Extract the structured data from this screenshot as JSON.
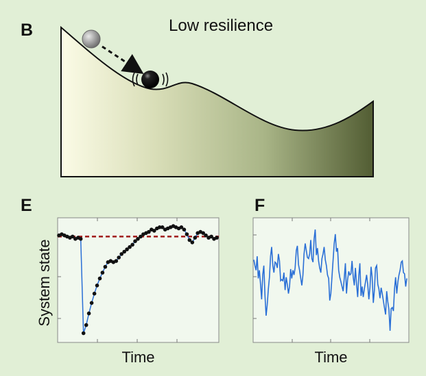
{
  "panel_b": {
    "letter": "B",
    "title": "Low resilience"
  },
  "panel_e": {
    "letter": "E",
    "ylabel": "System state",
    "xlabel": "Time"
  },
  "panel_f": {
    "letter": "F",
    "xlabel": "Time"
  },
  "colors": {
    "background": "#e1efd6",
    "plot_background": "#f1f8ee",
    "series_line": "#2a6fd6",
    "equilibrium_line": "#a01818",
    "landscape_light": "#fbfbe6",
    "landscape_dark": "#525d33"
  },
  "chart_data": [
    {
      "type": "line",
      "panel": "E",
      "xlabel": "Time",
      "ylabel": "System state",
      "equilibrium": 0.88,
      "ylim": [
        0,
        1
      ],
      "x": [
        0,
        1,
        2,
        3,
        4,
        5,
        6,
        7,
        8,
        9,
        10,
        11,
        12,
        13,
        14,
        15,
        16,
        17,
        18,
        19,
        20,
        21,
        22,
        23,
        24,
        25,
        26,
        27,
        28,
        29,
        30,
        31,
        32,
        33,
        34,
        35,
        36,
        37,
        38,
        39,
        40,
        41,
        42,
        43,
        44,
        45,
        46,
        47,
        48,
        49,
        50,
        51,
        52,
        53,
        54,
        55,
        56,
        57,
        58
      ],
      "series": [
        {
          "values": [
            0.89,
            0.9,
            0.89,
            0.88,
            0.87,
            0.88,
            0.86,
            0.87,
            0.86,
            0.05,
            0.12,
            0.22,
            0.31,
            0.39,
            0.46,
            0.52,
            0.57,
            0.62,
            0.66,
            0.67,
            0.66,
            0.67,
            0.7,
            0.73,
            0.75,
            0.77,
            0.79,
            0.81,
            0.84,
            0.86,
            0.88,
            0.9,
            0.91,
            0.92,
            0.94,
            0.93,
            0.95,
            0.96,
            0.96,
            0.94,
            0.95,
            0.96,
            0.97,
            0.96,
            0.95,
            0.96,
            0.94,
            0.9,
            0.85,
            0.83,
            0.87,
            0.91,
            0.92,
            0.91,
            0.89,
            0.87,
            0.88,
            0.86,
            0.87
          ]
        }
      ]
    },
    {
      "type": "line",
      "panel": "F",
      "xlabel": "Time",
      "ylim": [
        0,
        1
      ],
      "series": [
        {
          "values": [
            0.71,
            0.66,
            0.62,
            0.74,
            0.55,
            0.62,
            0.5,
            0.37,
            0.58,
            0.66,
            0.4,
            0.23,
            0.32,
            0.46,
            0.56,
            0.74,
            0.82,
            0.66,
            0.6,
            0.69,
            0.68,
            0.64,
            0.76,
            0.7,
            0.53,
            0.54,
            0.53,
            0.6,
            0.45,
            0.56,
            0.5,
            0.42,
            0.48,
            0.63,
            0.55,
            0.62,
            0.58,
            0.64,
            0.79,
            0.83,
            0.67,
            0.62,
            0.55,
            0.49,
            0.58,
            0.76,
            0.85,
            0.79,
            0.73,
            0.72,
            0.76,
            0.88,
            0.72,
            0.69,
            0.89,
            0.97,
            0.75,
            0.81,
            0.7,
            0.64,
            0.6,
            0.72,
            0.76,
            0.82,
            0.71,
            0.66,
            0.58,
            0.55,
            0.36,
            0.42,
            0.56,
            0.71,
            0.85,
            0.93,
            0.78,
            0.81,
            0.62,
            0.56,
            0.52,
            0.48,
            0.44,
            0.55,
            0.68,
            0.42,
            0.54,
            0.61,
            0.58,
            0.59,
            0.7,
            0.56,
            0.49,
            0.64,
            0.5,
            0.39,
            0.57,
            0.68,
            0.4,
            0.48,
            0.39,
            0.46,
            0.52,
            0.58,
            0.5,
            0.37,
            0.47,
            0.65,
            0.56,
            0.34,
            0.45,
            0.64,
            0.66,
            0.5,
            0.46,
            0.38,
            0.47,
            0.42,
            0.36,
            0.3,
            0.24,
            0.44,
            0.35,
            0.28,
            0.1,
            0.29,
            0.3,
            0.27,
            0.46,
            0.56,
            0.42,
            0.52,
            0.58,
            0.62,
            0.69,
            0.7,
            0.6,
            0.59,
            0.48,
            0.55
          ]
        }
      ]
    }
  ]
}
